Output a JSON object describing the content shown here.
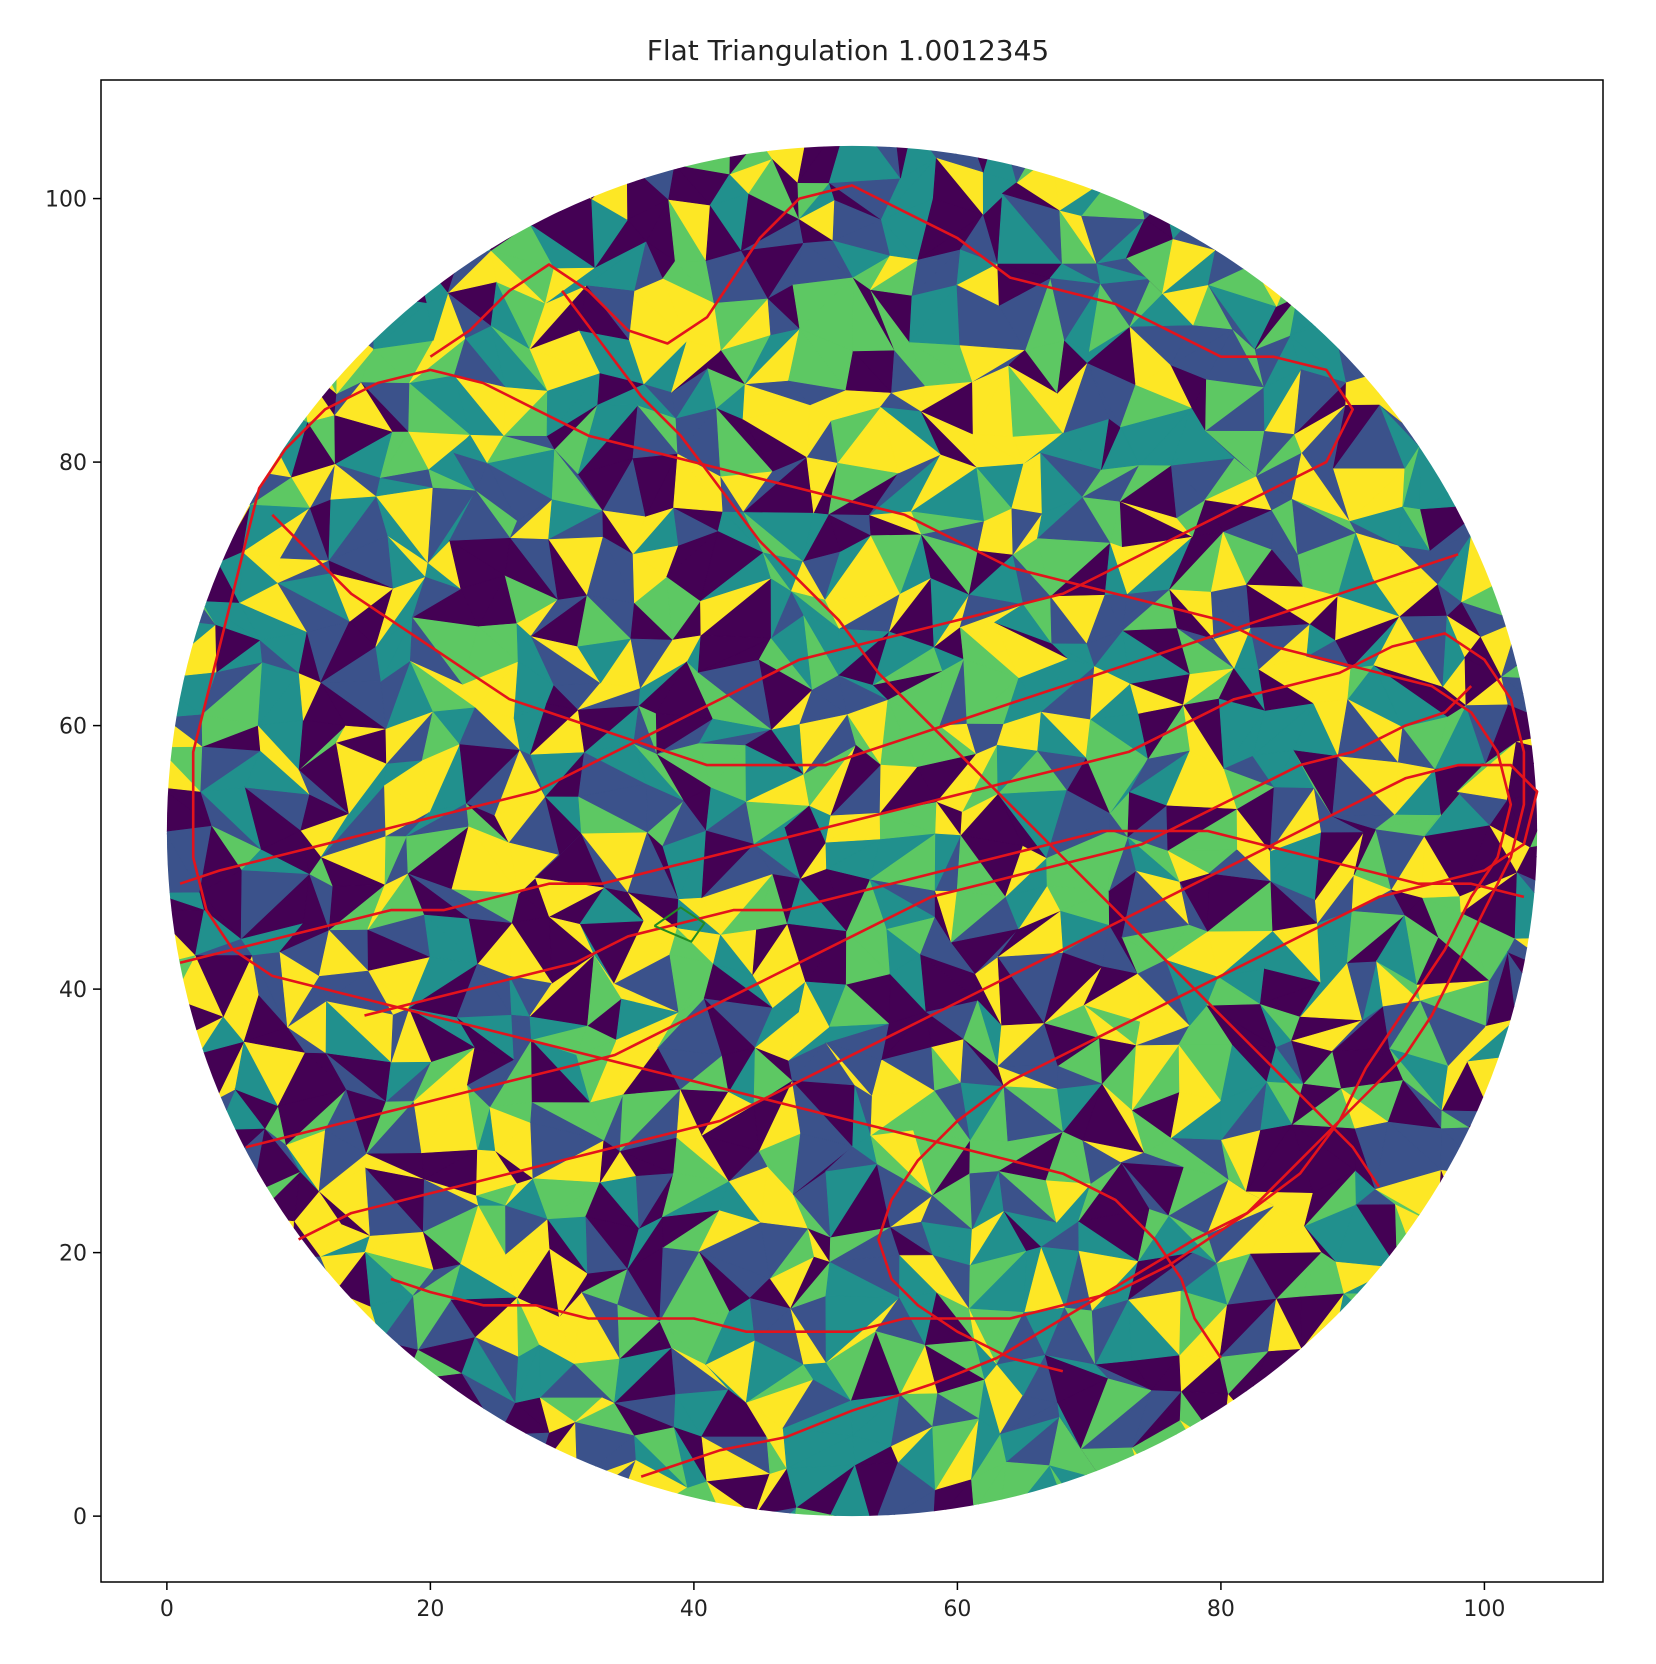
{
  "chart_data": {
    "type": "scatter",
    "title": "Flat Triangulation 1.0012345",
    "xlabel": "",
    "ylabel": "",
    "xlim": [
      -5,
      109
    ],
    "ylim": [
      -5,
      109
    ],
    "xticks": [
      0,
      20,
      40,
      60,
      80,
      100
    ],
    "yticks": [
      0,
      20,
      40,
      60,
      80,
      100
    ],
    "grid": false,
    "disk": {
      "center": [
        52,
        52
      ],
      "radius": 52
    },
    "colormap": [
      "#440154",
      "#3b528b",
      "#21908d",
      "#5dc863",
      "#fde725"
    ],
    "series": [
      {
        "color": "#e3131c",
        "points": [
          [
            36,
            3
          ],
          [
            42,
            5
          ],
          [
            47,
            6
          ],
          [
            52,
            8
          ],
          [
            58,
            10
          ],
          [
            63,
            12
          ],
          [
            68,
            15
          ],
          [
            73,
            18
          ],
          [
            78,
            21
          ],
          [
            82,
            23
          ],
          [
            86,
            26
          ],
          [
            89,
            30
          ],
          [
            91,
            34
          ],
          [
            93,
            37
          ],
          [
            95,
            40
          ],
          [
            97,
            43
          ],
          [
            99,
            47
          ],
          [
            101,
            50
          ],
          [
            102,
            54
          ],
          [
            101,
            58
          ],
          [
            99,
            61
          ],
          [
            96,
            63
          ],
          [
            92,
            64
          ],
          [
            88,
            65
          ],
          [
            84,
            66
          ],
          [
            80,
            68
          ],
          [
            76,
            69
          ],
          [
            72,
            70
          ],
          [
            68,
            71
          ],
          [
            64,
            72
          ],
          [
            60,
            74
          ],
          [
            56,
            76
          ],
          [
            52,
            77
          ],
          [
            48,
            78
          ],
          [
            44,
            79
          ],
          [
            40,
            80
          ],
          [
            36,
            81
          ],
          [
            32,
            82
          ],
          [
            28,
            84
          ],
          [
            24,
            86
          ],
          [
            20,
            87
          ],
          [
            16,
            86
          ],
          [
            12,
            84
          ],
          [
            9,
            81
          ],
          [
            7,
            78
          ],
          [
            6,
            74
          ],
          [
            5,
            70
          ],
          [
            4,
            66
          ],
          [
            3,
            62
          ],
          [
            2,
            58
          ],
          [
            2,
            54
          ],
          [
            2,
            50
          ],
          [
            3,
            46
          ],
          [
            5,
            43
          ],
          [
            8,
            41
          ],
          [
            12,
            40
          ],
          [
            16,
            39
          ],
          [
            20,
            38
          ],
          [
            24,
            37
          ],
          [
            28,
            36
          ],
          [
            32,
            35
          ],
          [
            36,
            34
          ],
          [
            40,
            33
          ],
          [
            44,
            32
          ],
          [
            48,
            31
          ],
          [
            52,
            30
          ],
          [
            56,
            29
          ],
          [
            60,
            28
          ],
          [
            64,
            27
          ],
          [
            68,
            26
          ],
          [
            72,
            24
          ],
          [
            75,
            21
          ],
          [
            77,
            18
          ],
          [
            78,
            15
          ],
          [
            80,
            12
          ]
        ]
      },
      {
        "color": "#e3131c",
        "points": [
          [
            10,
            21
          ],
          [
            14,
            23
          ],
          [
            18,
            24
          ],
          [
            22,
            25
          ],
          [
            26,
            26
          ],
          [
            30,
            27
          ],
          [
            34,
            28
          ],
          [
            38,
            29
          ],
          [
            42,
            30
          ],
          [
            46,
            32
          ],
          [
            50,
            34
          ],
          [
            54,
            36
          ],
          [
            58,
            38
          ],
          [
            62,
            40
          ],
          [
            66,
            42
          ],
          [
            70,
            44
          ],
          [
            74,
            46
          ],
          [
            78,
            48
          ],
          [
            82,
            50
          ],
          [
            86,
            52
          ],
          [
            90,
            54
          ],
          [
            94,
            56
          ],
          [
            98,
            57
          ],
          [
            102,
            57
          ],
          [
            104,
            55
          ],
          [
            103,
            51
          ],
          [
            100,
            49
          ],
          [
            96,
            48
          ],
          [
            92,
            47
          ],
          [
            88,
            45
          ],
          [
            84,
            43
          ],
          [
            80,
            41
          ],
          [
            76,
            39
          ],
          [
            72,
            37
          ],
          [
            68,
            35
          ],
          [
            64,
            33
          ],
          [
            60,
            30
          ],
          [
            57,
            27
          ],
          [
            55,
            24
          ],
          [
            54,
            21
          ],
          [
            55,
            18
          ],
          [
            57,
            16
          ],
          [
            60,
            14
          ],
          [
            64,
            12
          ],
          [
            68,
            11
          ]
        ]
      },
      {
        "color": "#e3131c",
        "points": [
          [
            1,
            48
          ],
          [
            4,
            49
          ],
          [
            8,
            50
          ],
          [
            12,
            51
          ],
          [
            16,
            52
          ],
          [
            20,
            53
          ],
          [
            24,
            54
          ],
          [
            28,
            55
          ],
          [
            32,
            57
          ],
          [
            36,
            59
          ],
          [
            40,
            61
          ],
          [
            44,
            63
          ],
          [
            48,
            65
          ],
          [
            52,
            66
          ],
          [
            56,
            67
          ],
          [
            60,
            68
          ],
          [
            64,
            69
          ],
          [
            68,
            70
          ],
          [
            72,
            72
          ],
          [
            76,
            74
          ],
          [
            80,
            76
          ],
          [
            84,
            78
          ],
          [
            88,
            80
          ],
          [
            90,
            84
          ],
          [
            88,
            87
          ],
          [
            84,
            88
          ],
          [
            80,
            88
          ],
          [
            76,
            90
          ],
          [
            72,
            92
          ],
          [
            68,
            93
          ],
          [
            64,
            94
          ],
          [
            60,
            97
          ],
          [
            56,
            99
          ],
          [
            52,
            101
          ],
          [
            48,
            100
          ],
          [
            45,
            97
          ],
          [
            43,
            94
          ],
          [
            41,
            91
          ],
          [
            38,
            89
          ],
          [
            35,
            90
          ],
          [
            32,
            93
          ],
          [
            29,
            95
          ],
          [
            26,
            93
          ],
          [
            23,
            90
          ],
          [
            20,
            88
          ]
        ]
      },
      {
        "color": "#e3131c",
        "points": [
          [
            1,
            42
          ],
          [
            5,
            43
          ],
          [
            9,
            44
          ],
          [
            13,
            45
          ],
          [
            17,
            46
          ],
          [
            21,
            46
          ],
          [
            25,
            47
          ],
          [
            29,
            48
          ],
          [
            33,
            48
          ],
          [
            37,
            49
          ],
          [
            41,
            50
          ],
          [
            45,
            51
          ],
          [
            49,
            52
          ],
          [
            53,
            53
          ],
          [
            57,
            54
          ],
          [
            61,
            55
          ],
          [
            65,
            56
          ],
          [
            69,
            57
          ],
          [
            73,
            58
          ],
          [
            77,
            60
          ],
          [
            81,
            62
          ],
          [
            85,
            63
          ],
          [
            89,
            64
          ],
          [
            93,
            66
          ],
          [
            97,
            67
          ],
          [
            100,
            65
          ],
          [
            102,
            62
          ],
          [
            103,
            58
          ],
          [
            103,
            54
          ],
          [
            102,
            50
          ],
          [
            100,
            46
          ],
          [
            98,
            42
          ],
          [
            96,
            38
          ],
          [
            94,
            35
          ],
          [
            91,
            32
          ],
          [
            88,
            29
          ],
          [
            85,
            26
          ],
          [
            82,
            23
          ],
          [
            79,
            21
          ],
          [
            76,
            19
          ],
          [
            72,
            17
          ],
          [
            68,
            16
          ],
          [
            64,
            15
          ],
          [
            60,
            15
          ],
          [
            56,
            15
          ],
          [
            52,
            14
          ],
          [
            48,
            14
          ],
          [
            44,
            14
          ],
          [
            40,
            15
          ],
          [
            36,
            15
          ],
          [
            32,
            15
          ],
          [
            28,
            16
          ],
          [
            24,
            16
          ],
          [
            20,
            17
          ],
          [
            17,
            18
          ]
        ]
      },
      {
        "color": "#e3131c",
        "points": [
          [
            6,
            28
          ],
          [
            10,
            29
          ],
          [
            14,
            30
          ],
          [
            18,
            31
          ],
          [
            22,
            32
          ],
          [
            26,
            33
          ],
          [
            30,
            34
          ],
          [
            34,
            35
          ],
          [
            38,
            37
          ],
          [
            42,
            39
          ],
          [
            46,
            41
          ],
          [
            50,
            43
          ],
          [
            54,
            45
          ],
          [
            58,
            47
          ],
          [
            62,
            48
          ],
          [
            66,
            49
          ],
          [
            70,
            50
          ],
          [
            74,
            51
          ],
          [
            78,
            53
          ],
          [
            82,
            55
          ],
          [
            86,
            57
          ],
          [
            90,
            58
          ],
          [
            94,
            60
          ],
          [
            97,
            61
          ],
          [
            99,
            63
          ]
        ]
      },
      {
        "color": "#e3131c",
        "points": [
          [
            8,
            76
          ],
          [
            11,
            73
          ],
          [
            14,
            70
          ],
          [
            17,
            68
          ],
          [
            20,
            66
          ],
          [
            23,
            64
          ],
          [
            26,
            62
          ],
          [
            29,
            61
          ],
          [
            32,
            60
          ],
          [
            35,
            59
          ],
          [
            38,
            58
          ],
          [
            41,
            57
          ],
          [
            44,
            57
          ],
          [
            47,
            57
          ],
          [
            50,
            57
          ],
          [
            53,
            58
          ],
          [
            56,
            59
          ],
          [
            59,
            60
          ],
          [
            62,
            61
          ],
          [
            65,
            62
          ],
          [
            68,
            63
          ],
          [
            71,
            64
          ],
          [
            74,
            65
          ],
          [
            77,
            66
          ],
          [
            80,
            67
          ],
          [
            83,
            68
          ],
          [
            86,
            69
          ],
          [
            89,
            70
          ],
          [
            92,
            71
          ],
          [
            95,
            72
          ],
          [
            98,
            73
          ]
        ]
      },
      {
        "color": "#e3131c",
        "points": [
          [
            15,
            38
          ],
          [
            19,
            39
          ],
          [
            23,
            40
          ],
          [
            27,
            41
          ],
          [
            31,
            42
          ],
          [
            35,
            44
          ],
          [
            39,
            45
          ],
          [
            43,
            46
          ],
          [
            47,
            46
          ],
          [
            51,
            47
          ],
          [
            55,
            48
          ],
          [
            59,
            49
          ],
          [
            63,
            50
          ],
          [
            67,
            51
          ],
          [
            71,
            52
          ],
          [
            75,
            52
          ],
          [
            79,
            52
          ],
          [
            83,
            51
          ],
          [
            87,
            50
          ],
          [
            91,
            49
          ],
          [
            95,
            48
          ],
          [
            99,
            48
          ],
          [
            103,
            47
          ]
        ]
      },
      {
        "color": "#e3131c",
        "points": [
          [
            30,
            93
          ],
          [
            33,
            89
          ],
          [
            36,
            85
          ],
          [
            39,
            82
          ],
          [
            42,
            78
          ],
          [
            45,
            74
          ],
          [
            48,
            71
          ],
          [
            51,
            68
          ],
          [
            54,
            64
          ],
          [
            57,
            61
          ],
          [
            60,
            58
          ],
          [
            63,
            55
          ],
          [
            66,
            52
          ],
          [
            69,
            49
          ],
          [
            72,
            46
          ],
          [
            75,
            43
          ],
          [
            78,
            40
          ],
          [
            81,
            37
          ],
          [
            84,
            34
          ],
          [
            87,
            31
          ],
          [
            90,
            28
          ],
          [
            92,
            25
          ]
        ]
      },
      {
        "color": "#228b22",
        "points": [
          [
            37,
            44.8
          ],
          [
            39,
            46.2
          ],
          [
            40.8,
            45
          ],
          [
            39.8,
            43.6
          ],
          [
            37,
            44.8
          ]
        ]
      }
    ]
  }
}
